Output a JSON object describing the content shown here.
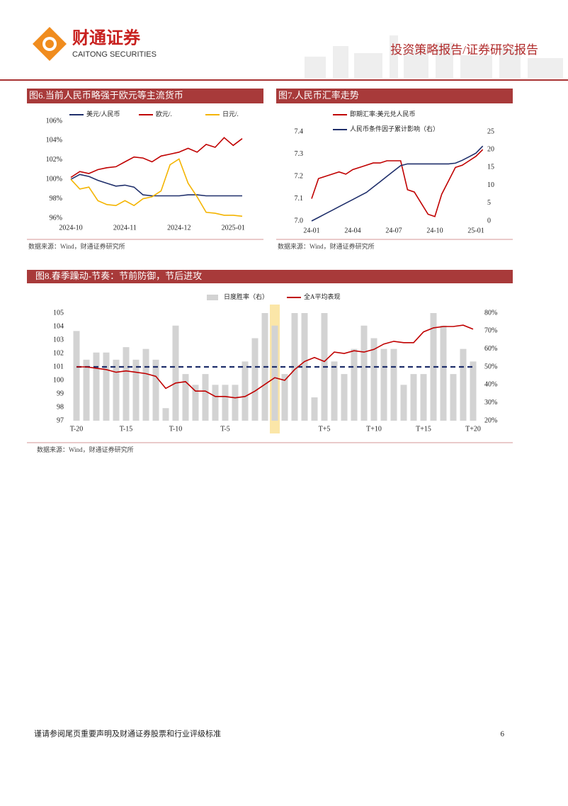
{
  "header": {
    "company_cn": "财通证券",
    "company_en": "CAITONG SECURITIES",
    "report_type": "投资策略报告/证券研究报告"
  },
  "chart_data": [
    {
      "type": "line",
      "title": "图6.当前人民币略强于欧元等主流货币",
      "source": "数据来源：Wind，财通证券研究所",
      "categories": [
        "2024-10",
        null,
        null,
        null,
        null,
        null,
        "2024-11",
        null,
        null,
        null,
        null,
        null,
        "2024-12",
        null,
        null,
        null,
        null,
        null,
        "2025-01",
        null
      ],
      "ylim": [
        96,
        106
      ],
      "yticks": [
        {
          "value": 96,
          "label": "96%"
        },
        {
          "value": 98,
          "label": "98%"
        },
        {
          "value": 100,
          "label": "100%"
        },
        {
          "value": 102,
          "label": "102%"
        },
        {
          "value": 104,
          "label": "104%"
        },
        {
          "value": 106,
          "label": "106%"
        }
      ],
      "series": [
        {
          "name": "美元/人民币",
          "color": "#1f2f6b",
          "values": [
            100,
            100.5,
            100.3,
            99.9,
            99.6,
            99.3,
            99.4,
            99.2,
            98.4,
            98.3,
            98.3,
            98.3,
            98.3,
            98.4,
            98.4,
            98.3,
            98.3,
            98.3,
            98.3,
            98.3
          ]
        },
        {
          "name": "欧元/.",
          "color": "#c00000",
          "values": [
            100.2,
            100.8,
            100.6,
            101,
            101.2,
            101.3,
            101.8,
            102.3,
            102.2,
            101.8,
            102.4,
            102.6,
            102.8,
            103.2,
            102.8,
            103.6,
            103.3,
            104.3,
            103.5,
            104.2
          ]
        },
        {
          "name": "日元/.",
          "color": "#f4b400",
          "values": [
            100,
            99,
            99.2,
            97.8,
            97.4,
            97.3,
            97.8,
            97.3,
            98,
            98.2,
            98.8,
            101.5,
            102.1,
            99.6,
            98.2,
            96.6,
            96.5,
            96.3,
            96.3,
            96.2
          ]
        }
      ]
    },
    {
      "type": "line",
      "title": "图7.人民币汇率走势",
      "source": "数据来源：Wind，财通证券研究所",
      "categories": [
        "24-01",
        null,
        null,
        null,
        null,
        null,
        "24-04",
        null,
        null,
        null,
        null,
        null,
        "24-07",
        null,
        null,
        null,
        null,
        null,
        "24-10",
        null,
        null,
        null,
        null,
        null,
        "25-01",
        null
      ],
      "ylim": [
        7.0,
        7.4
      ],
      "yticks": [
        {
          "value": 7,
          "label": "7.0"
        },
        7.1,
        7.2,
        7.3,
        7.4
      ],
      "y2lim": [
        0,
        25
      ],
      "y2ticks": [
        0,
        5,
        10,
        15,
        20,
        25
      ],
      "series": [
        {
          "name": "即期汇率:美元兑人民币",
          "color": "#c00000",
          "values": [
            7.1,
            7.19,
            7.2,
            7.21,
            7.22,
            7.21,
            7.23,
            7.24,
            7.25,
            7.26,
            7.26,
            7.27,
            7.27,
            7.27,
            7.14,
            7.13,
            7.08,
            7.03,
            7.02,
            7.12,
            7.18,
            7.24,
            7.25,
            7.27,
            7.29,
            7.32
          ]
        },
        {
          "name": "人民币条件因子累计影响（右）",
          "color": "#1f2f6b",
          "axis": "y2",
          "values": [
            0,
            1,
            2,
            3,
            4,
            5,
            6,
            7,
            8,
            9.5,
            11,
            12.5,
            14,
            15.5,
            16,
            16,
            16,
            16,
            16,
            16,
            16,
            16.2,
            17,
            18,
            19,
            21
          ]
        }
      ]
    },
    {
      "type": "combo",
      "title": "图8.春季躁动-节奏：节前防御，节后进攻",
      "source": "数据来源：Wind，财通证券研究所",
      "categories": [
        "T-20",
        null,
        null,
        null,
        null,
        "T-15",
        null,
        null,
        null,
        null,
        "T-10",
        null,
        null,
        null,
        null,
        "T-5",
        null,
        null,
        null,
        null,
        "T",
        null,
        null,
        null,
        null,
        "T+5",
        null,
        null,
        null,
        null,
        "T+10",
        null,
        null,
        null,
        null,
        "T+15",
        null,
        null,
        null,
        null,
        "T+20"
      ],
      "ylim": [
        97,
        105
      ],
      "yticks": [
        97,
        98,
        99,
        100,
        101,
        102,
        103,
        104,
        105
      ],
      "y2lim": [
        20,
        80
      ],
      "y2ticks": [
        {
          "value": 20,
          "label": "20%"
        },
        {
          "value": 30,
          "label": "30%"
        },
        {
          "value": 40,
          "label": "40%"
        },
        {
          "value": 50,
          "label": "50%"
        },
        {
          "value": 60,
          "label": "60%"
        },
        {
          "value": 70,
          "label": "70%"
        },
        {
          "value": 80,
          "label": "80%"
        }
      ],
      "hline": 101,
      "hline_color": "#1f2f6b",
      "highlight_index": 20,
      "highlight_color": "#fbe6a8",
      "series": [
        {
          "name": "日度胜率（右）",
          "type": "bar",
          "axis": "y2",
          "color": "#d3d3d3",
          "values": [
            70,
            54,
            58,
            58,
            54,
            61,
            54,
            60,
            54,
            27,
            73,
            46,
            40,
            46,
            40,
            40,
            40,
            53,
            66,
            80,
            73,
            46,
            80,
            80,
            33,
            80,
            53,
            46,
            60,
            73,
            66,
            60,
            60,
            40,
            46,
            46,
            80,
            73,
            46,
            60,
            53
          ]
        },
        {
          "name": "全A平均表现",
          "type": "line",
          "color": "#c00000",
          "values": [
            101.0,
            101.0,
            100.9,
            100.8,
            100.6,
            100.7,
            100.6,
            100.5,
            100.3,
            99.4,
            99.8,
            99.9,
            99.2,
            99.2,
            98.8,
            98.8,
            98.7,
            98.8,
            99.2,
            99.7,
            100.2,
            100.0,
            100.8,
            101.4,
            101.7,
            101.4,
            102.1,
            102.0,
            102.2,
            102.1,
            102.3,
            102.7,
            102.9,
            102.8,
            102.8,
            103.6,
            103.9,
            104.0,
            104.0,
            104.1,
            103.8
          ]
        }
      ]
    }
  ],
  "footer": {
    "disclaimer": "谨请参阅尾页重要声明及财通证券股票和行业评级标准",
    "page_number": "6"
  }
}
